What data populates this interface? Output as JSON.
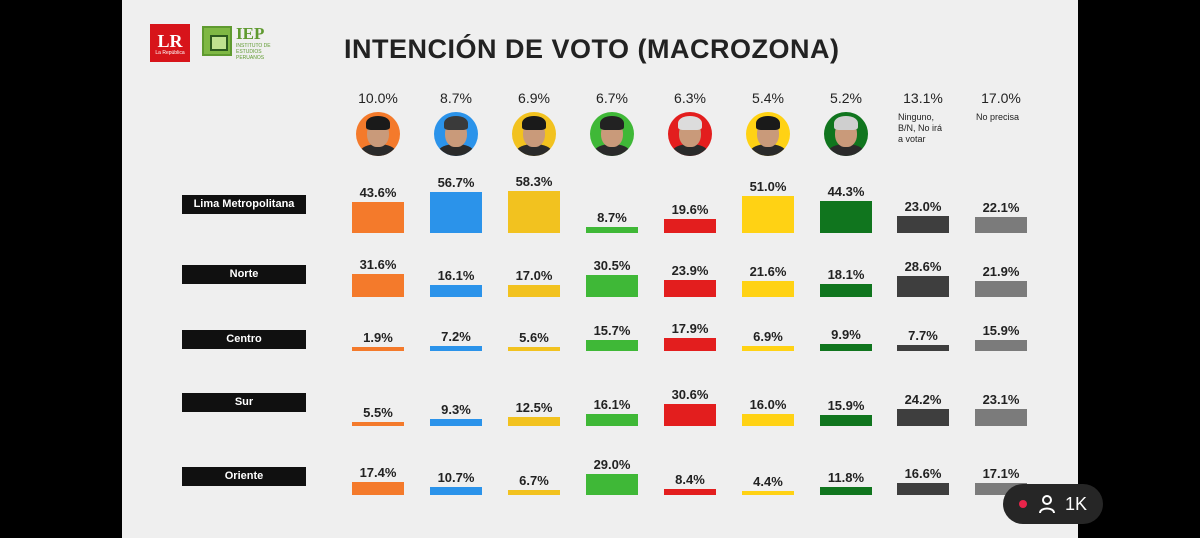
{
  "title": "INTENCIÓN DE VOTO (MACROZONA)",
  "logos": {
    "lr_text": "LR",
    "lr_sub": "La República",
    "iep_text": "IEP",
    "iep_sub": "INSTITUTO DE ESTUDIOS PERUANOS"
  },
  "live": {
    "viewer_count": "1K",
    "dot_color": "#e8244a"
  },
  "chart_data": {
    "type": "bar",
    "title": "INTENCIÓN DE VOTO (MACROZONA)",
    "candidates": [
      {
        "id": "c1",
        "overall": "10.0%",
        "color": "#f47a2b",
        "note": ""
      },
      {
        "id": "c2",
        "overall": "8.7%",
        "color": "#2b93ea",
        "note": ""
      },
      {
        "id": "c3",
        "overall": "6.9%",
        "color": "#f2c21f",
        "note": ""
      },
      {
        "id": "c4",
        "overall": "6.7%",
        "color": "#3fb837",
        "note": ""
      },
      {
        "id": "c5",
        "overall": "6.3%",
        "color": "#e31e1e",
        "note": ""
      },
      {
        "id": "c6",
        "overall": "5.4%",
        "color": "#ffd214",
        "note": ""
      },
      {
        "id": "c7",
        "overall": "5.2%",
        "color": "#10751e",
        "note": ""
      },
      {
        "id": "c8",
        "overall": "13.1%",
        "color": "#3e3e3e",
        "note": "Ninguno, B/N, No irá a votar"
      },
      {
        "id": "c9",
        "overall": "17.0%",
        "color": "#7b7b7b",
        "note": "No precisa"
      }
    ],
    "regions": [
      {
        "name": "Lima Metropolitana",
        "values": [
          43.6,
          56.7,
          58.3,
          8.7,
          19.6,
          51.0,
          44.3,
          23.0,
          22.1
        ]
      },
      {
        "name": "Norte",
        "values": [
          31.6,
          16.1,
          17.0,
          30.5,
          23.9,
          21.6,
          18.1,
          28.6,
          21.9
        ]
      },
      {
        "name": "Centro",
        "values": [
          1.9,
          7.2,
          5.6,
          15.7,
          17.9,
          6.9,
          9.9,
          7.7,
          15.9
        ]
      },
      {
        "name": "Sur",
        "values": [
          5.5,
          9.3,
          12.5,
          16.1,
          30.6,
          16.0,
          15.9,
          24.2,
          23.1
        ]
      },
      {
        "name": "Oriente",
        "values": [
          17.4,
          10.7,
          6.7,
          29.0,
          8.4,
          4.4,
          11.8,
          16.6,
          17.1
        ]
      }
    ],
    "labels": [
      [
        "43.6%",
        "56.7%",
        "58.3%",
        "8.7%",
        "19.6%",
        "51.0%",
        "44.3%",
        "23.0%",
        "22.1%"
      ],
      [
        "31.6%",
        "16.1%",
        "17.0%",
        "30.5%",
        "23.9%",
        "21.6%",
        "18.1%",
        "28.6%",
        "21.9%"
      ],
      [
        "1.9%",
        "7.2%",
        "5.6%",
        "15.7%",
        "17.9%",
        "6.9%",
        "9.9%",
        "7.7%",
        "15.9%"
      ],
      [
        "5.5%",
        "9.3%",
        "12.5%",
        "16.1%",
        "30.6%",
        "16.0%",
        "15.9%",
        "24.2%",
        "23.1%"
      ],
      [
        "17.4%",
        "10.7%",
        "6.7%",
        "29.0%",
        "8.4%",
        "4.4%",
        "11.8%",
        "16.6%",
        "17.1%"
      ]
    ],
    "unit": "%"
  }
}
